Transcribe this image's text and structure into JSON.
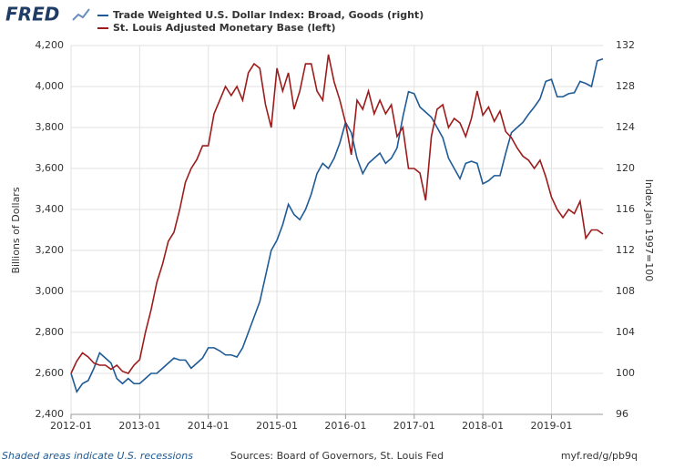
{
  "chart_data": {
    "type": "line",
    "logo": "FRED",
    "footer_left": "Shaded areas indicate U.S. recessions",
    "footer_center": "Sources: Board of Governors, St. Louis Fed",
    "footer_right": "myf.red/g/pb9q",
    "ylabel": "Billions of Dollars",
    "y2label": "Index Jan 1997=100",
    "grid": true,
    "xlim": [
      "2012-01",
      "2019-10"
    ],
    "xticks": [
      "2012-01",
      "2013-01",
      "2014-01",
      "2015-01",
      "2016-01",
      "2017-01",
      "2018-01",
      "2019-01"
    ],
    "ylim": [
      2400,
      4200
    ],
    "yticks": [
      {
        "value": 2400,
        "label": "2,400"
      },
      {
        "value": 2600,
        "label": "2,600"
      },
      {
        "value": 2800,
        "label": "2,800"
      },
      {
        "value": 3000,
        "label": "3,000"
      },
      {
        "value": 3200,
        "label": "3,200"
      },
      {
        "value": 3400,
        "label": "3,400"
      },
      {
        "value": 3600,
        "label": "3,600"
      },
      {
        "value": 3800,
        "label": "3,800"
      },
      {
        "value": 4000,
        "label": "4,000"
      },
      {
        "value": 4200,
        "label": "4,200"
      }
    ],
    "y2lim": [
      96,
      132
    ],
    "y2ticks": [
      96,
      100,
      104,
      108,
      112,
      116,
      120,
      124,
      128,
      132
    ],
    "x": [
      "2012-01",
      "2012-02",
      "2012-03",
      "2012-04",
      "2012-05",
      "2012-06",
      "2012-07",
      "2012-08",
      "2012-09",
      "2012-10",
      "2012-11",
      "2012-12",
      "2013-01",
      "2013-02",
      "2013-03",
      "2013-04",
      "2013-05",
      "2013-06",
      "2013-07",
      "2013-08",
      "2013-09",
      "2013-10",
      "2013-11",
      "2013-12",
      "2014-01",
      "2014-02",
      "2014-03",
      "2014-04",
      "2014-05",
      "2014-06",
      "2014-07",
      "2014-08",
      "2014-09",
      "2014-10",
      "2014-11",
      "2014-12",
      "2015-01",
      "2015-02",
      "2015-03",
      "2015-04",
      "2015-05",
      "2015-06",
      "2015-07",
      "2015-08",
      "2015-09",
      "2015-10",
      "2015-11",
      "2015-12",
      "2016-01",
      "2016-02",
      "2016-03",
      "2016-04",
      "2016-05",
      "2016-06",
      "2016-07",
      "2016-08",
      "2016-09",
      "2016-10",
      "2016-11",
      "2016-12",
      "2017-01",
      "2017-02",
      "2017-03",
      "2017-04",
      "2017-05",
      "2017-06",
      "2017-07",
      "2017-08",
      "2017-09",
      "2017-10",
      "2017-11",
      "2017-12",
      "2018-01",
      "2018-02",
      "2018-03",
      "2018-04",
      "2018-05",
      "2018-06",
      "2018-07",
      "2018-08",
      "2018-09",
      "2018-10",
      "2018-11",
      "2018-12",
      "2019-01",
      "2019-02",
      "2019-03",
      "2019-04",
      "2019-05",
      "2019-06",
      "2019-07",
      "2019-08",
      "2019-09",
      "2019-10"
    ],
    "series": [
      {
        "name": "Trade Weighted U.S. Dollar Index: Broad, Goods (right)",
        "color": "#1f5a96",
        "axis": "y2",
        "values": [
          100,
          98.2,
          99,
          99.3,
          100.5,
          102,
          101.5,
          101,
          99.5,
          99,
          99.5,
          99,
          99,
          99.5,
          100,
          100,
          100.5,
          101,
          101.5,
          101.3,
          101.3,
          100.5,
          101,
          101.5,
          102.5,
          102.5,
          102.2,
          101.8,
          101.8,
          101.6,
          102.5,
          104,
          105.5,
          107,
          109.5,
          112,
          113,
          114.5,
          116.5,
          115.5,
          115,
          116,
          117.5,
          119.5,
          120.5,
          120,
          121,
          122.5,
          124.5,
          123.5,
          121,
          119.5,
          120.5,
          121,
          121.5,
          120.5,
          121,
          122,
          125,
          127.5,
          127.3,
          126,
          125.5,
          125,
          124,
          123,
          121,
          120,
          119,
          120.5,
          120.7,
          120.5,
          118.5,
          118.8,
          119.3,
          119.3,
          121.5,
          123.5,
          124,
          124.5,
          125.3,
          126,
          126.8,
          128.5,
          128.7,
          127,
          127,
          127.3,
          127.4,
          128.5,
          128.3,
          128,
          130.5,
          130.7
        ]
      },
      {
        "name": "St. Louis Adjusted Monetary Base (left)",
        "color": "#9c1c1c",
        "axis": "y",
        "values": [
          2600,
          2660,
          2700,
          2680,
          2650,
          2640,
          2640,
          2620,
          2640,
          2610,
          2600,
          2640,
          2667,
          2800,
          2911,
          3044,
          3133,
          3244,
          3289,
          3400,
          3533,
          3600,
          3644,
          3711,
          3711,
          3867,
          3933,
          4000,
          3956,
          4000,
          3933,
          4067,
          4111,
          4089,
          3911,
          3800,
          4089,
          3978,
          4067,
          3889,
          3978,
          4111,
          4111,
          3978,
          3933,
          4156,
          4022,
          3933,
          3822,
          3667,
          3933,
          3889,
          3978,
          3867,
          3933,
          3867,
          3911,
          3756,
          3800,
          3600,
          3600,
          3578,
          3444,
          3756,
          3889,
          3911,
          3800,
          3844,
          3822,
          3756,
          3844,
          3978,
          3860,
          3900,
          3830,
          3880,
          3780,
          3750,
          3700,
          3660,
          3640,
          3600,
          3640,
          3560,
          3460,
          3400,
          3360,
          3400,
          3380,
          3440,
          3260,
          3300,
          3300,
          3280
        ]
      }
    ]
  }
}
